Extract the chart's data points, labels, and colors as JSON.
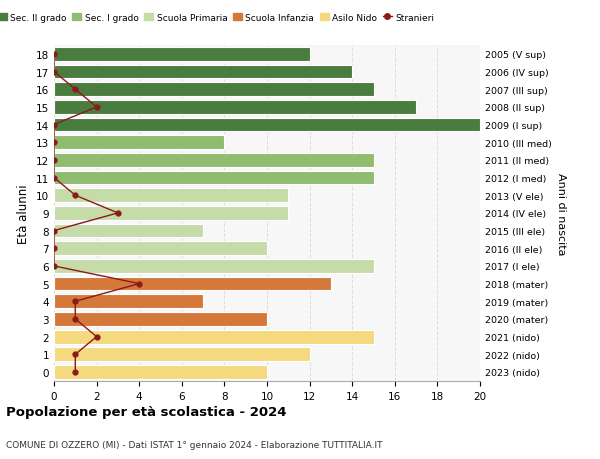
{
  "ages": [
    18,
    17,
    16,
    15,
    14,
    13,
    12,
    11,
    10,
    9,
    8,
    7,
    6,
    5,
    4,
    3,
    2,
    1,
    0
  ],
  "years": [
    "2005 (V sup)",
    "2006 (IV sup)",
    "2007 (III sup)",
    "2008 (II sup)",
    "2009 (I sup)",
    "2010 (III med)",
    "2011 (II med)",
    "2012 (I med)",
    "2013 (V ele)",
    "2014 (IV ele)",
    "2015 (III ele)",
    "2016 (II ele)",
    "2017 (I ele)",
    "2018 (mater)",
    "2019 (mater)",
    "2020 (mater)",
    "2021 (nido)",
    "2022 (nido)",
    "2023 (nido)"
  ],
  "bar_values": [
    12,
    14,
    15,
    17,
    20,
    8,
    15,
    15,
    11,
    11,
    7,
    10,
    15,
    13,
    7,
    10,
    15,
    12,
    10
  ],
  "bar_colors": [
    "#4a7c3f",
    "#4a7c3f",
    "#4a7c3f",
    "#4a7c3f",
    "#4a7c3f",
    "#8fbc6e",
    "#8fbc6e",
    "#8fbc6e",
    "#c5dba8",
    "#c5dba8",
    "#c5dba8",
    "#c5dba8",
    "#c5dba8",
    "#d4793a",
    "#d4793a",
    "#d4793a",
    "#f5d97e",
    "#f5d97e",
    "#f5d97e"
  ],
  "stranieri_values": [
    0,
    0,
    1,
    2,
    0,
    0,
    0,
    0,
    1,
    3,
    0,
    0,
    0,
    4,
    1,
    1,
    2,
    1,
    1
  ],
  "stranieri_color": "#8b1a1a",
  "title": "Popolazione per età scolastica - 2024",
  "subtitle": "COMUNE DI OZZERO (MI) - Dati ISTAT 1° gennaio 2024 - Elaborazione TUTTITALIA.IT",
  "ylabel_left": "Età alunni",
  "ylabel_right": "Anni di nascita",
  "xlim": [
    0,
    20
  ],
  "xticks": [
    0,
    2,
    4,
    6,
    8,
    10,
    12,
    14,
    16,
    18,
    20
  ],
  "background_color": "#ffffff",
  "plot_bg_color": "#f7f7f7",
  "grid_color": "#dddddd",
  "legend_labels": [
    "Sec. II grado",
    "Sec. I grado",
    "Scuola Primaria",
    "Scuola Infanzia",
    "Asilo Nido",
    "Stranieri"
  ],
  "legend_colors": [
    "#4a7c3f",
    "#8fbc6e",
    "#c5dba8",
    "#d4793a",
    "#f5d97e",
    "#8b1a1a"
  ]
}
